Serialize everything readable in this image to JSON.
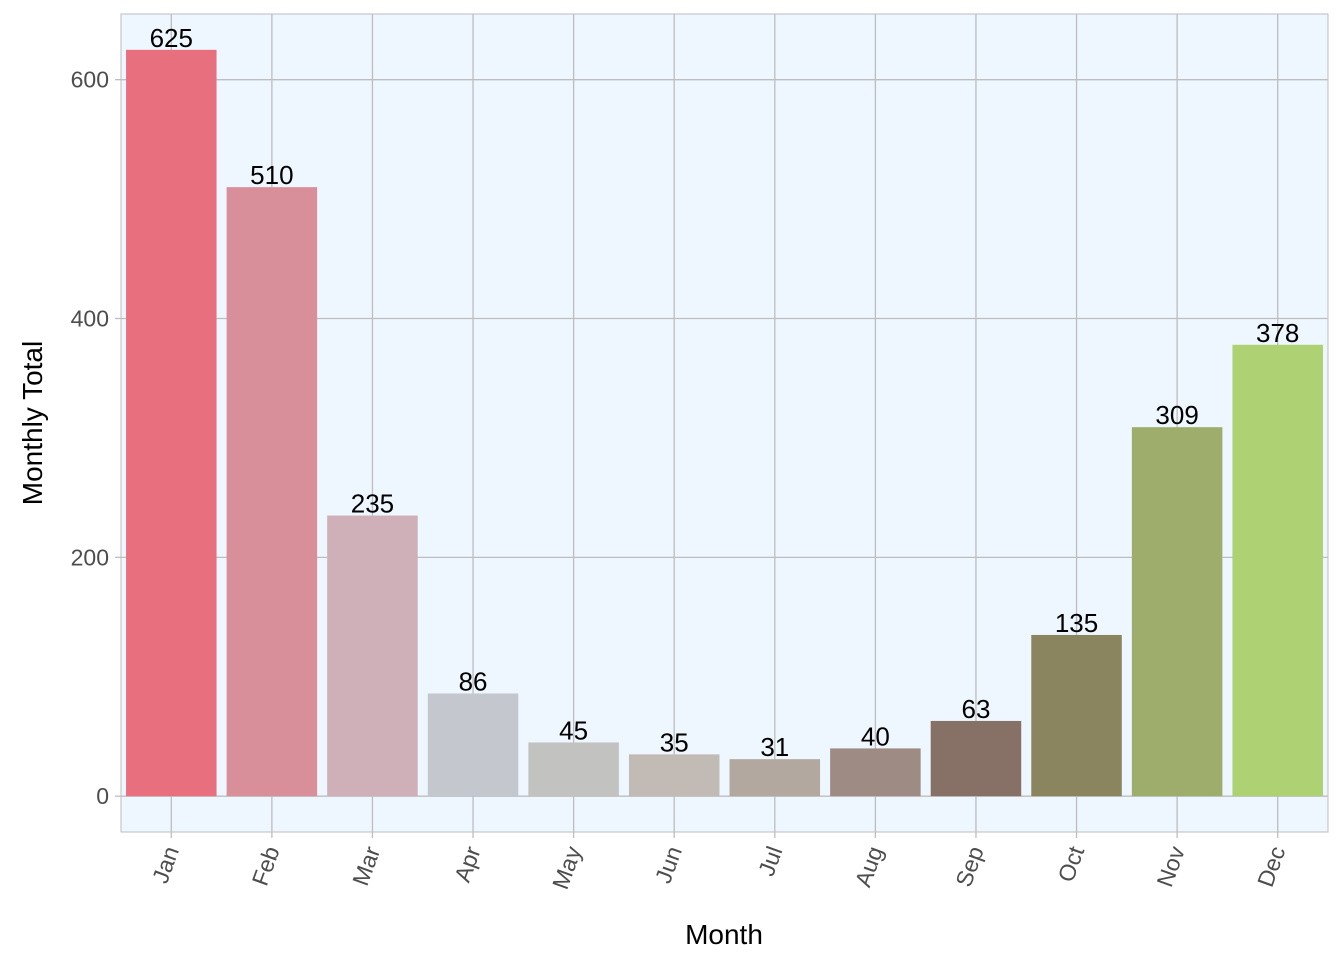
{
  "chart_data": {
    "type": "bar",
    "title": "",
    "xlabel": "Month",
    "ylabel": "Monthly Total",
    "categories": [
      "Jan",
      "Feb",
      "Mar",
      "Apr",
      "May",
      "Jun",
      "Jul",
      "Aug",
      "Sep",
      "Oct",
      "Nov",
      "Dec"
    ],
    "values": [
      625,
      510,
      235,
      86,
      45,
      35,
      31,
      40,
      63,
      135,
      309,
      378
    ],
    "data_labels": [
      "625",
      "510",
      "235",
      "86",
      "45",
      "35",
      "31",
      "40",
      "63",
      "135",
      "309",
      "378"
    ],
    "colors": [
      "#E8707E",
      "#D98F9A",
      "#CFB0B8",
      "#C4C7CE",
      "#C2C2C0",
      "#C2BAB4",
      "#B3A8A0",
      "#9E8C84",
      "#877167",
      "#8A845F",
      "#9EAD6B",
      "#ADD173"
    ],
    "yticks": [
      0,
      200,
      400,
      600
    ],
    "ytick_labels": [
      "0",
      "200",
      "400",
      "600"
    ],
    "ylim": [
      -30,
      655
    ],
    "grid": true,
    "panel_background": "#EEF6FF",
    "grid_color": "#BEBEBE",
    "legend": "none"
  }
}
